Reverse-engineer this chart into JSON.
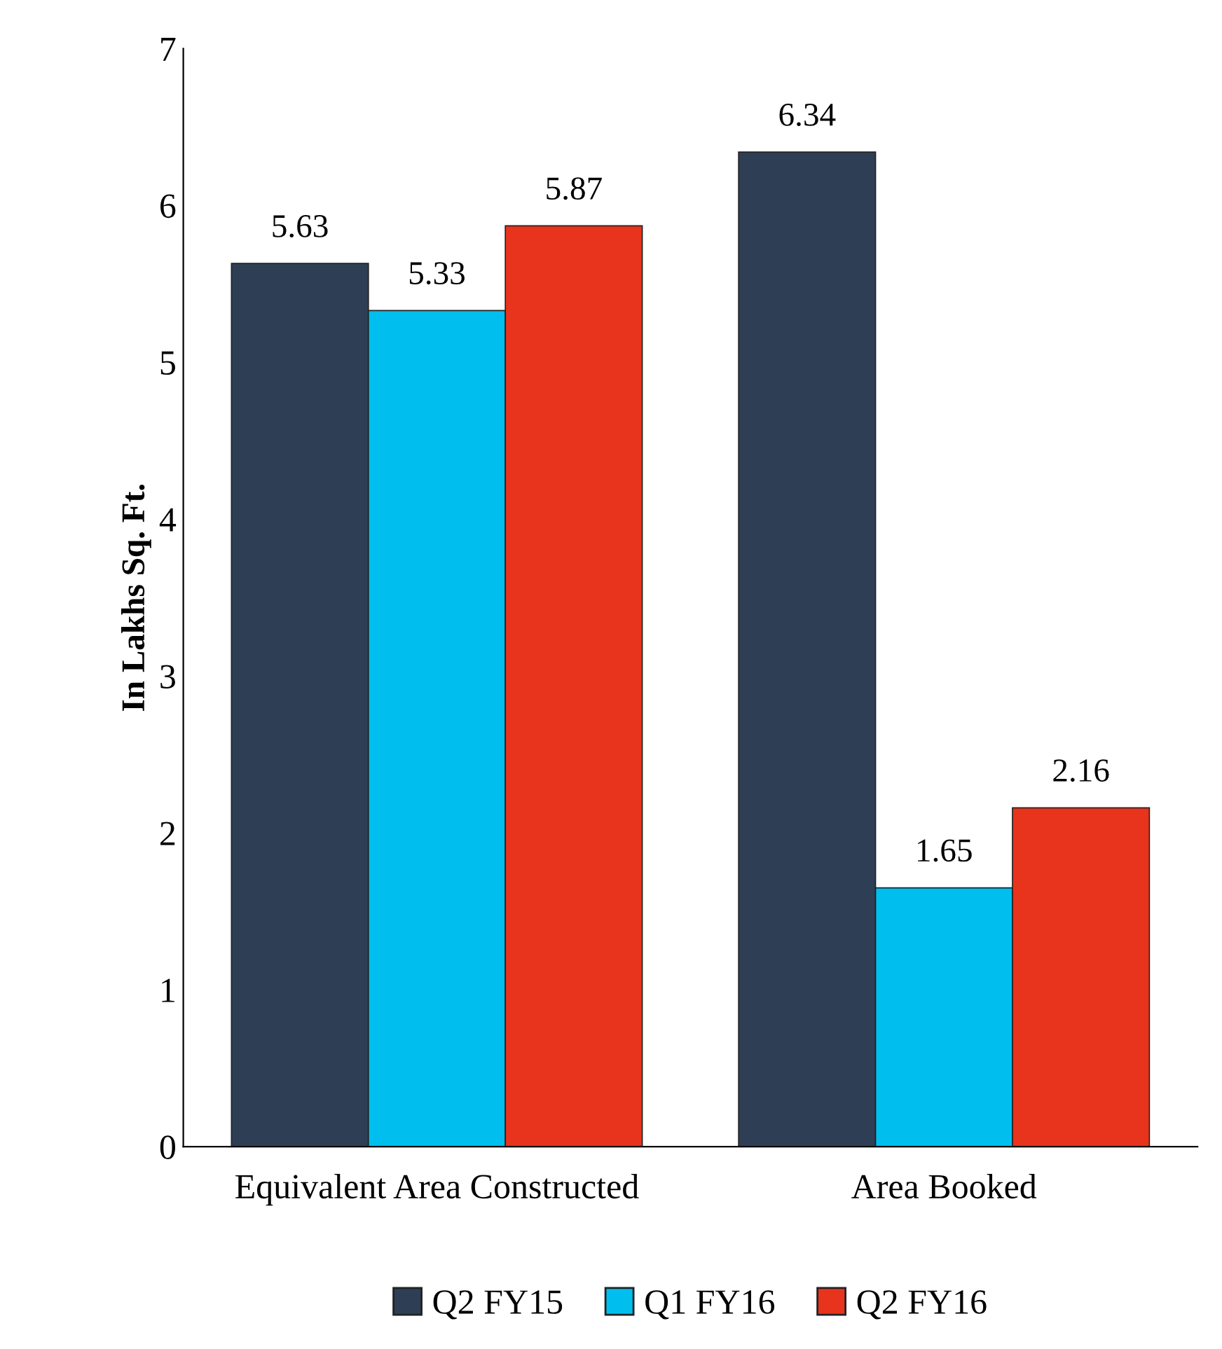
{
  "chart_data": {
    "type": "bar",
    "ylabel": "In Lakhs Sq. Ft.",
    "categories": [
      "Equivalent Area Constructed",
      "Area Booked"
    ],
    "series": [
      {
        "name": "Q2 FY15",
        "color": "#2e3f55",
        "values": [
          5.63,
          6.34
        ]
      },
      {
        "name": "Q1 FY16",
        "color": "#00bfef",
        "values": [
          5.33,
          1.65
        ]
      },
      {
        "name": "Q2 FY16",
        "color": "#e8341c",
        "values": [
          5.87,
          2.16
        ]
      }
    ],
    "ylim": [
      0,
      7
    ],
    "yticks": [
      0,
      1,
      2,
      3,
      4,
      5,
      6,
      7
    ],
    "grid": false,
    "legend": "bottom",
    "data_labels": true
  }
}
